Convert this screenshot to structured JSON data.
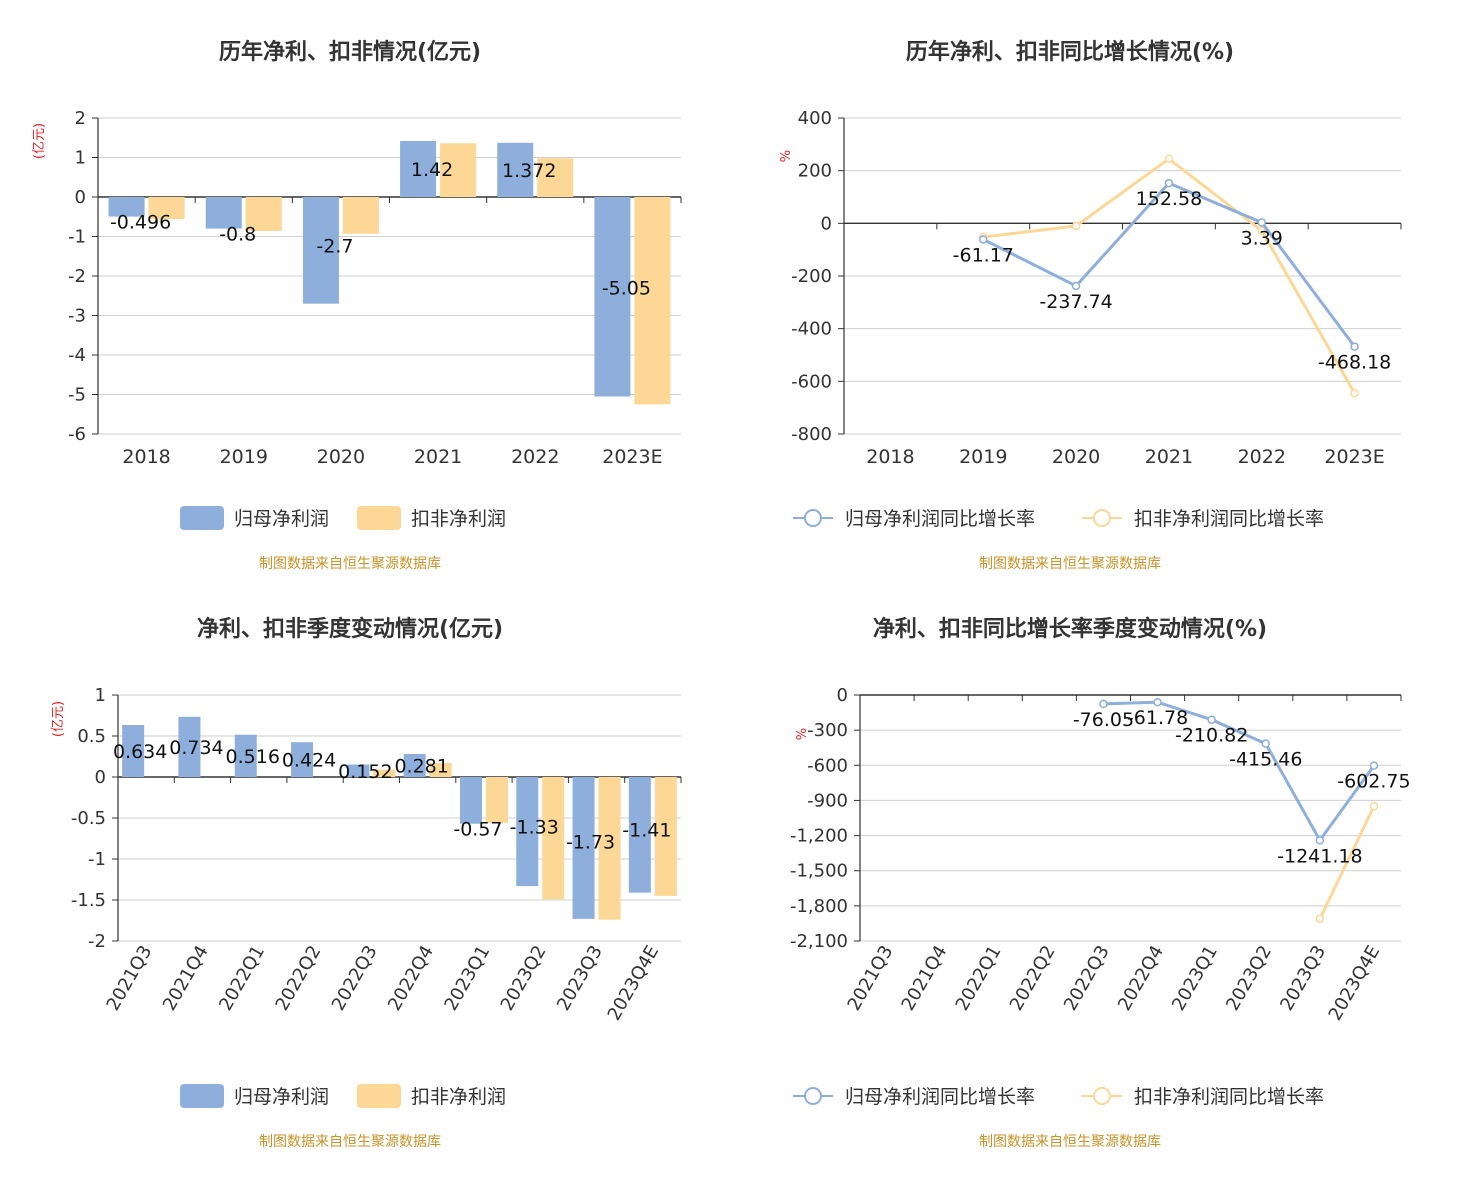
{
  "colors": {
    "series1": "#8eaedc",
    "series2": "#fcd795",
    "axis": "#333333",
    "grid": "#cfcfcf",
    "title": "#333333",
    "tick": "#333333",
    "unit": "#e02020",
    "source": "#c8932a",
    "label": "#111111"
  },
  "chart_data": [
    {
      "type": "bar",
      "title": "历年净利、扣非情况(亿元)",
      "ylabel": "(亿元)",
      "ylim": [
        -6,
        2
      ],
      "yticks": [
        2,
        1,
        0,
        -1,
        -2,
        -3,
        -4,
        -5,
        -6
      ],
      "categories": [
        "2018",
        "2019",
        "2020",
        "2021",
        "2022",
        "2023E"
      ],
      "series": [
        {
          "name": "归母净利润",
          "values": [
            -0.496,
            -0.8,
            -2.7,
            1.42,
            1.372,
            -5.05
          ],
          "labels": [
            "-0.496",
            "-0.8",
            "-2.7",
            "1.42",
            "1.372",
            "-5.05"
          ]
        },
        {
          "name": "扣非净利润",
          "values": [
            -0.56,
            -0.86,
            -0.93,
            1.36,
            0.98,
            -5.25
          ]
        }
      ],
      "legend": "bottom-center",
      "source": "制图数据来自恒生聚源数据库"
    },
    {
      "type": "line",
      "title": "历年净利、扣非同比增长情况(%)",
      "ylabel": "%",
      "ylim": [
        -800,
        400
      ],
      "yticks": [
        400,
        200,
        0,
        -200,
        -400,
        -600,
        -800
      ],
      "categories": [
        "2018",
        "2019",
        "2020",
        "2021",
        "2022",
        "2023E"
      ],
      "series": [
        {
          "name": "归母净利润同比增长率",
          "values": [
            null,
            -61.17,
            -237.74,
            152.58,
            3.39,
            -468.18
          ],
          "labels": [
            "",
            "-61.17",
            "-237.74",
            "152.58",
            "3.39",
            "-468.18"
          ]
        },
        {
          "name": "扣非净利润同比增长率",
          "values": [
            null,
            -52,
            -10,
            245,
            -28,
            -645
          ]
        }
      ],
      "legend": "bottom-center",
      "source": "制图数据来自恒生聚源数据库"
    },
    {
      "type": "bar",
      "title": "净利、扣非季度变动情况(亿元)",
      "ylabel": "(亿元)",
      "ylim": [
        -2,
        1
      ],
      "yticks": [
        1,
        0.5,
        0,
        -0.5,
        -1,
        -1.5,
        -2
      ],
      "categories": [
        "2021Q3",
        "2021Q4",
        "2022Q1",
        "2022Q2",
        "2022Q3",
        "2022Q4",
        "2023Q1",
        "2023Q2",
        "2023Q3",
        "2023Q4E"
      ],
      "series": [
        {
          "name": "归母净利润",
          "values": [
            0.634,
            0.734,
            0.516,
            0.424,
            0.152,
            0.281,
            -0.57,
            -1.33,
            -1.73,
            -1.41
          ],
          "labels": [
            "0.634",
            "0.734",
            "0.516",
            "0.424",
            "0.152",
            "0.281",
            "-0.57",
            "-1.33",
            "-1.73",
            "-1.41"
          ]
        },
        {
          "name": "扣非净利润",
          "values": [
            0,
            0,
            0,
            0,
            0.09,
            0.17,
            -0.56,
            -1.49,
            -1.74,
            -1.45
          ]
        }
      ],
      "legend": "bottom-center",
      "source": "制图数据来自恒生聚源数据库"
    },
    {
      "type": "line",
      "title": "净利、扣非同比增长率季度变动情况(%)",
      "ylabel": "%",
      "ylim": [
        -2100,
        0
      ],
      "yticks": [
        0,
        -300,
        -600,
        -900,
        -1200,
        -1500,
        -1800,
        -2100
      ],
      "ytick_labels": [
        "0",
        "-300",
        "-600",
        "-900",
        "-1,200",
        "-1,500",
        "-1,800",
        "-2,100"
      ],
      "categories": [
        "2021Q3",
        "2021Q4",
        "2022Q1",
        "2022Q2",
        "2022Q3",
        "2022Q4",
        "2023Q1",
        "2023Q2",
        "2023Q3",
        "2023Q4E"
      ],
      "series": [
        {
          "name": "归母净利润同比增长率",
          "values": [
            null,
            null,
            null,
            null,
            -76.05,
            -61.78,
            -210.82,
            -415.46,
            -1241.18,
            -602.75
          ],
          "labels": [
            "",
            "",
            "",
            "",
            "-76.05",
            "-61.78",
            "-210.82",
            "-415.46",
            "-1241.18",
            "-602.75"
          ]
        },
        {
          "name": "扣非净利润同比增长率",
          "values": [
            null,
            null,
            null,
            null,
            null,
            null,
            null,
            null,
            -1910,
            -950
          ]
        }
      ],
      "legend": "bottom-center",
      "source": "制图数据来自恒生聚源数据库"
    }
  ]
}
